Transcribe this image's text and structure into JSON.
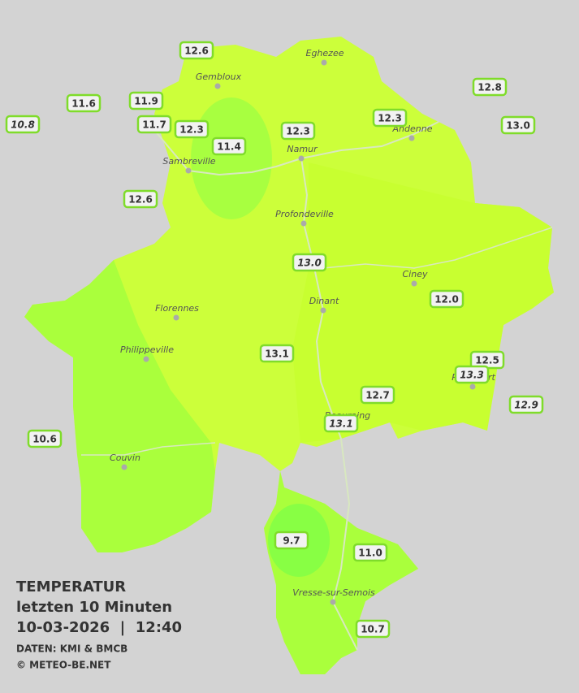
{
  "map": {
    "title": [
      "TEMPERATUR",
      "letzten 10 Minuten",
      "10-03-2026  |  12:40"
    ],
    "credits": [
      "DATEN: KMI & BMCB",
      "© METEO-BE.NET"
    ],
    "towns": [
      "Eghezee",
      "Gembloux",
      "Andenne",
      "Namur",
      "Sambreville",
      "Profondeville",
      "Ciney",
      "Dinant",
      "Florennes",
      "Philippeville",
      "Couvin",
      "Vresse-sur-Semois",
      "Rochefort",
      "Beauraing"
    ],
    "stations": [
      {
        "label": "12.6",
        "italic": false
      },
      {
        "label": "11.6",
        "italic": false
      },
      {
        "label": "11.9",
        "italic": false
      },
      {
        "label": "10.8",
        "italic": true
      },
      {
        "label": "11.7",
        "italic": false
      },
      {
        "label": "12.3",
        "italic": false
      },
      {
        "label": "11.4",
        "italic": false
      },
      {
        "label": "12.3",
        "italic": false
      },
      {
        "label": "12.3",
        "italic": false
      },
      {
        "label": "12.8",
        "italic": false
      },
      {
        "label": "13.0",
        "italic": false
      },
      {
        "label": "12.6",
        "italic": false
      },
      {
        "label": "13.0",
        "italic": true
      },
      {
        "label": "12.0",
        "italic": false
      },
      {
        "label": "13.1",
        "italic": false
      },
      {
        "label": "12.5",
        "italic": false
      },
      {
        "label": "13.3",
        "italic": true
      },
      {
        "label": "12.7",
        "italic": false
      },
      {
        "label": "13.1",
        "italic": true
      },
      {
        "label": "12.9",
        "italic": true
      },
      {
        "label": "10.6",
        "italic": false
      },
      {
        "label": "9.7",
        "italic": false
      },
      {
        "label": "11.0",
        "italic": false
      },
      {
        "label": "10.7",
        "italic": false
      }
    ]
  }
}
